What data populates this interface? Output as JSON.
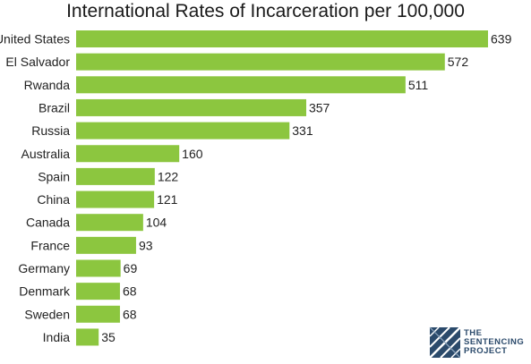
{
  "chart_data": {
    "type": "bar",
    "orientation": "horizontal",
    "title": "International Rates of Incarceration per 100,000",
    "categories": [
      "United States",
      "El Salvador",
      "Rwanda",
      "Brazil",
      "Russia",
      "Australia",
      "Spain",
      "China",
      "Canada",
      "France",
      "Germany",
      "Denmark",
      "Sweden",
      "India"
    ],
    "values": [
      639,
      572,
      511,
      357,
      331,
      160,
      122,
      121,
      104,
      93,
      69,
      68,
      68,
      35
    ],
    "value_labels": [
      "639",
      "572",
      "511",
      "357",
      "331",
      "160",
      "122",
      "121",
      "104",
      "93",
      "69",
      "68",
      "68",
      "35"
    ],
    "xlim": [
      0,
      639
    ],
    "grid": false,
    "legend": "none",
    "bar_color": "#8cc63f"
  },
  "logo": {
    "line1": "THE",
    "line2": "SENTENCING",
    "line3": "PROJECT",
    "color": "#2b4a6b"
  }
}
